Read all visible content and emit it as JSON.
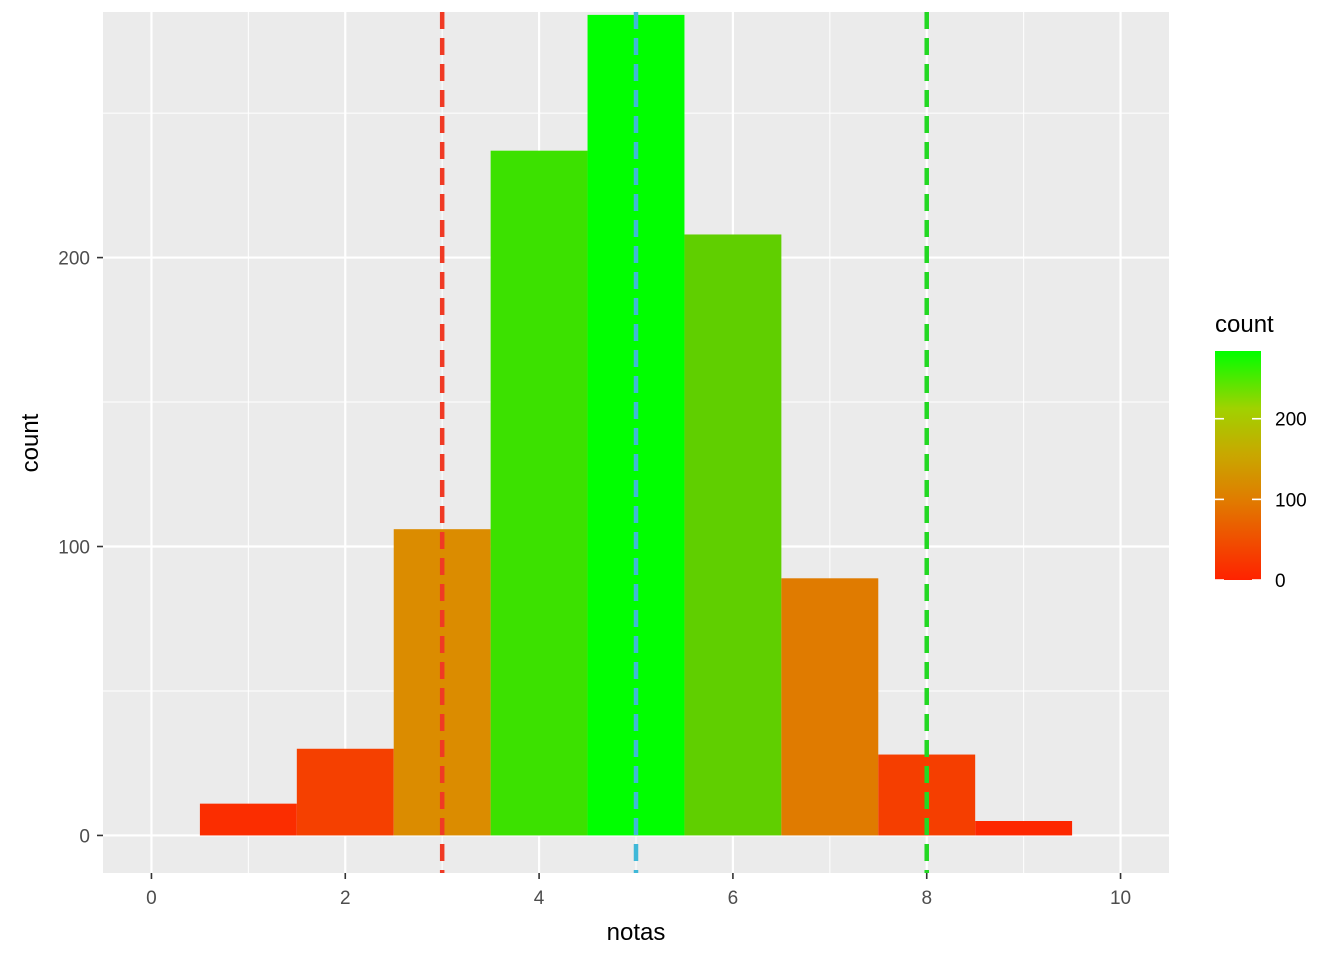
{
  "chart_data": {
    "type": "bar",
    "subtype": "histogram",
    "xlabel": "notas",
    "ylabel": "count",
    "xlim": [
      -0.5,
      10.5
    ],
    "ylim": [
      -13,
      285
    ],
    "x_ticks": [
      0,
      2,
      4,
      6,
      8,
      10
    ],
    "y_ticks": [
      0,
      100,
      200
    ],
    "bin_width": 1,
    "bins": [
      {
        "x": 1,
        "count": 11
      },
      {
        "x": 2,
        "count": 30
      },
      {
        "x": 3,
        "count": 106
      },
      {
        "x": 4,
        "count": 237
      },
      {
        "x": 5,
        "count": 284
      },
      {
        "x": 6,
        "count": 208
      },
      {
        "x": 7,
        "count": 89
      },
      {
        "x": 8,
        "count": 28
      },
      {
        "x": 9,
        "count": 5
      }
    ],
    "vlines": [
      {
        "x": 3,
        "color": "#f03a24",
        "style": "dashed"
      },
      {
        "x": 5,
        "color": "#3fb8d8",
        "style": "dashed"
      },
      {
        "x": 8,
        "color": "#22d822",
        "style": "dashed"
      }
    ],
    "fill_scale": {
      "low_color": "#ff2200",
      "mid_color": "#d89400",
      "high_color": "#00ff00",
      "min": 0,
      "max": 284
    },
    "grid": true,
    "legend": {
      "title": "count",
      "position": "right",
      "ticks": [
        0,
        100,
        200
      ]
    }
  }
}
